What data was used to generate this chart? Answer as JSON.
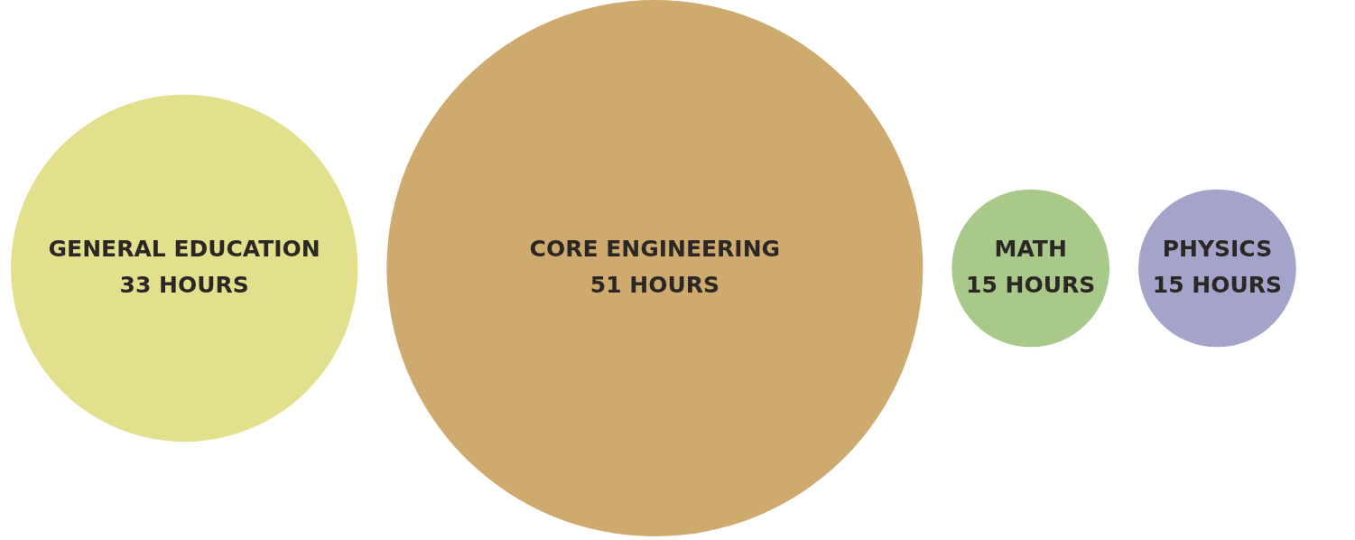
{
  "chart_data": {
    "type": "other",
    "categories": [
      "GENERAL EDUCATION",
      "CORE ENGINEERING",
      "MATH",
      "PHYSICS"
    ],
    "values": [
      33,
      51,
      15,
      15
    ],
    "colors": [
      "#e3e08d",
      "#cfaa6e",
      "#a9c98a",
      "#a4a3c9"
    ],
    "value_labels": [
      "33 HOURS",
      "51 HOURS",
      "15 HOURS",
      "15 HOURS"
    ]
  }
}
